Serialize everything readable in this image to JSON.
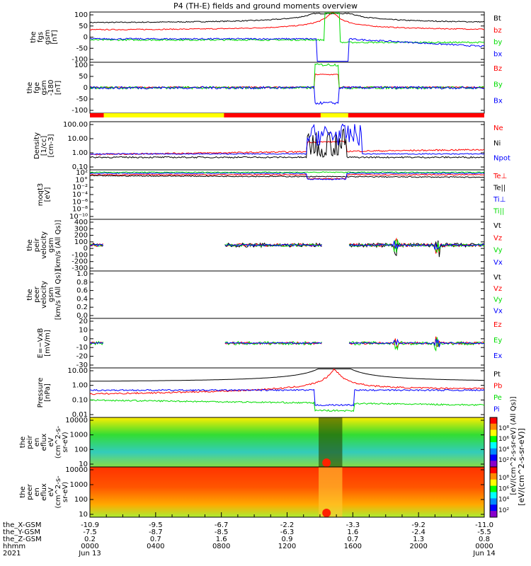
{
  "title": "P4 (TH-E) fields and ground moments overview",
  "colors": {
    "black": "#000000",
    "red": "#ff0000",
    "green": "#00dd00",
    "blue": "#0000ff",
    "yellow": "#ffff00"
  },
  "chart_data": {
    "type": "line",
    "x_axis": {
      "rows": [
        {
          "label": "the_X-GSM",
          "values": [
            "-10.9",
            "-9.5",
            "-6.7",
            "-2.2",
            "-3.3",
            "-9.2",
            "-11.0"
          ]
        },
        {
          "label": "the_Y-GSM",
          "values": [
            "-7.5",
            "-8.7",
            "-8.5",
            "-6.3",
            "1.6",
            "-2.4",
            "-5.5"
          ]
        },
        {
          "label": "the_Z-GSM",
          "values": [
            "0.2",
            "0.7",
            "1.6",
            "0.9",
            "0.7",
            "1.3",
            "0.8"
          ]
        },
        {
          "label": "hhmm",
          "values": [
            "0000",
            "0400",
            "0800",
            "1200",
            "1600",
            "2000",
            "0000"
          ]
        },
        {
          "label": "2021",
          "values": [
            "Jun 13",
            "",
            "",
            "",
            "",
            "",
            "Jun 14"
          ]
        }
      ]
    },
    "panels": [
      {
        "name": "fgs-gsm",
        "ylabel": [
          "the",
          "fgs",
          "gsm",
          "[nT]"
        ],
        "ticks": [
          "100",
          "50",
          "0",
          "-50",
          "-100"
        ],
        "ylim": [
          -100,
          100
        ],
        "legend": [
          "Bt",
          "bz",
          "by",
          "bx"
        ],
        "legend_colors": [
          "black",
          "red",
          "green",
          "blue"
        ]
      },
      {
        "name": "fge-gsm",
        "ylabel": [
          "the",
          "fge",
          "gsm",
          "-180",
          "[nT]"
        ],
        "ticks": [
          "100",
          "50",
          "0",
          "-50",
          "-100"
        ],
        "ylim": [
          -120,
          120
        ],
        "legend": [
          "Bz",
          "By",
          "Bx"
        ],
        "legend_colors": [
          "red",
          "green",
          "blue"
        ]
      },
      {
        "name": "density",
        "ylabel": [
          "Density",
          "[1/cc]",
          "[cm-3]"
        ],
        "ticks": [
          "100.00",
          "10.00",
          "1.00",
          "0.10"
        ],
        "legend": [
          "Ne",
          "Ni",
          "Npot"
        ],
        "legend_colors": [
          "red",
          "black",
          "blue"
        ]
      },
      {
        "name": "temperature",
        "ylabel": [
          "moqt3",
          "[eV]"
        ],
        "ticks": [
          "10²",
          "10°",
          "10⁻²",
          "10⁻⁴",
          "10⁻⁶",
          "10⁻⁸",
          "10⁻¹⁰"
        ],
        "legend": [
          "Te⊥",
          "Te||",
          "Ti⊥",
          "Ti||"
        ],
        "legend_colors": [
          "red",
          "black",
          "blue",
          "green"
        ]
      },
      {
        "name": "peir-velocity",
        "ylabel": [
          "the",
          "peir",
          "velocity",
          "gsm",
          "[km/s (All Qs)]"
        ],
        "ticks": [
          "400",
          "300",
          "200",
          "100",
          "0",
          "-100",
          "-200",
          "-300"
        ],
        "ylim": [
          -300,
          400
        ],
        "legend": [
          "Vt",
          "Vz",
          "Vy",
          "Vx"
        ],
        "legend_colors": [
          "black",
          "red",
          "green",
          "blue"
        ]
      },
      {
        "name": "peer-velocity",
        "ylabel": [
          "the",
          "peer",
          "velocity",
          "gsm",
          "[km/s (All Qs)]"
        ],
        "ticks": [
          "1.0",
          "0.8",
          "0.6",
          "0.4",
          "0.2",
          "0.0"
        ],
        "ylim": [
          0,
          1
        ],
        "legend": [
          "Vt",
          "Vz",
          "Vy",
          "Vx"
        ],
        "legend_colors": [
          "black",
          "red",
          "green",
          "blue"
        ]
      },
      {
        "name": "e-field",
        "ylabel": [
          "E=−VxB",
          "[mV/m]"
        ],
        "ticks": [
          "20",
          "10",
          "0",
          "-10",
          "-20",
          "-30"
        ],
        "ylim": [
          -30,
          20
        ],
        "legend": [
          "Ez",
          "Ey",
          "Ex"
        ],
        "legend_colors": [
          "red",
          "green",
          "blue"
        ]
      },
      {
        "name": "pressure",
        "ylabel": [
          "Pressure",
          "[nPa]"
        ],
        "ticks": [
          "10.00",
          "1.00",
          "0.10",
          "0.01"
        ],
        "legend": [
          "Pt",
          "Pb",
          "Pe",
          "Pi"
        ],
        "legend_colors": [
          "black",
          "red",
          "green",
          "blue"
        ]
      },
      {
        "name": "peir-spectrogram",
        "ylabel": [
          "the",
          "peir",
          "en",
          "eflux",
          "eV",
          "(cm^2-s-",
          "sr-eV)"
        ],
        "ticks": [
          "10000",
          "1000",
          "100",
          "10"
        ]
      },
      {
        "name": "peer-spectrogram",
        "ylabel": [
          "the",
          "peer",
          "en",
          "eflux",
          "eV",
          "(cm^2-s-",
          "sr-eV)"
        ],
        "ticks": [
          "10000",
          "1000",
          "100",
          "10"
        ]
      }
    ],
    "colorbar": {
      "ticks": [
        "10⁸",
        "10⁶",
        "10⁴",
        "10²"
      ],
      "label": "[eV/(cm^2-s-sr-eV)]",
      "label2": "[eV/(cm^2-s-sr-eV) (All Qs)]"
    }
  }
}
